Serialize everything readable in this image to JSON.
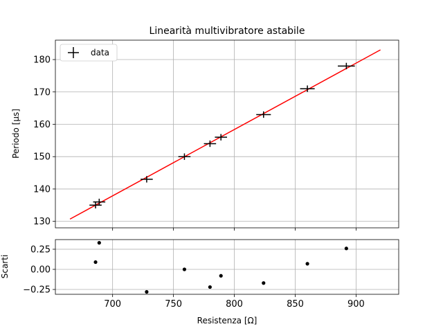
{
  "chart_data": [
    {
      "type": "scatter",
      "title": "Linearità multivibratore astabile",
      "xlabel": "",
      "ylabel": "Periodo [μs]",
      "xlim": [
        653,
        935
      ],
      "ylim": [
        128,
        186
      ],
      "xticks": [
        700,
        750,
        800,
        850,
        900
      ],
      "yticks": [
        130,
        140,
        150,
        160,
        170,
        180
      ],
      "grid": true,
      "legend": {
        "position": "top-left",
        "entries": [
          "data"
        ]
      },
      "series": [
        {
          "name": "data",
          "marker": "errorbar-cross",
          "color": "#000000",
          "x": [
            686,
            689,
            728,
            759,
            780,
            789,
            824,
            860,
            892
          ],
          "y": [
            135,
            136,
            143,
            150,
            154,
            156,
            163,
            171,
            178
          ],
          "xerr": [
            5,
            5,
            5,
            5,
            5,
            5,
            6,
            6,
            7
          ],
          "yerr": [
            1,
            1,
            1,
            1,
            1,
            1,
            1,
            1,
            1
          ]
        }
      ],
      "fit": {
        "color": "#ff0000",
        "x": [
          665,
          920
        ],
        "y": [
          130.7,
          183.0
        ]
      }
    },
    {
      "type": "scatter",
      "title": "",
      "xlabel": "Resistenza [Ω]",
      "ylabel": "Scarti",
      "xlim": [
        653,
        935
      ],
      "ylim": [
        -0.31,
        0.37
      ],
      "xticks": [
        700,
        750,
        800,
        850,
        900
      ],
      "yticks": [
        -0.25,
        0.0,
        0.25
      ],
      "ytick_labels": [
        "−0.25",
        "0.00",
        "0.25"
      ],
      "grid": true,
      "series": [
        {
          "color": "#000000",
          "x": [
            686,
            689,
            728,
            759,
            780,
            789,
            824,
            860,
            892
          ],
          "y": [
            0.09,
            0.33,
            -0.28,
            0.0,
            -0.22,
            -0.08,
            -0.17,
            0.07,
            0.26
          ]
        }
      ]
    }
  ]
}
